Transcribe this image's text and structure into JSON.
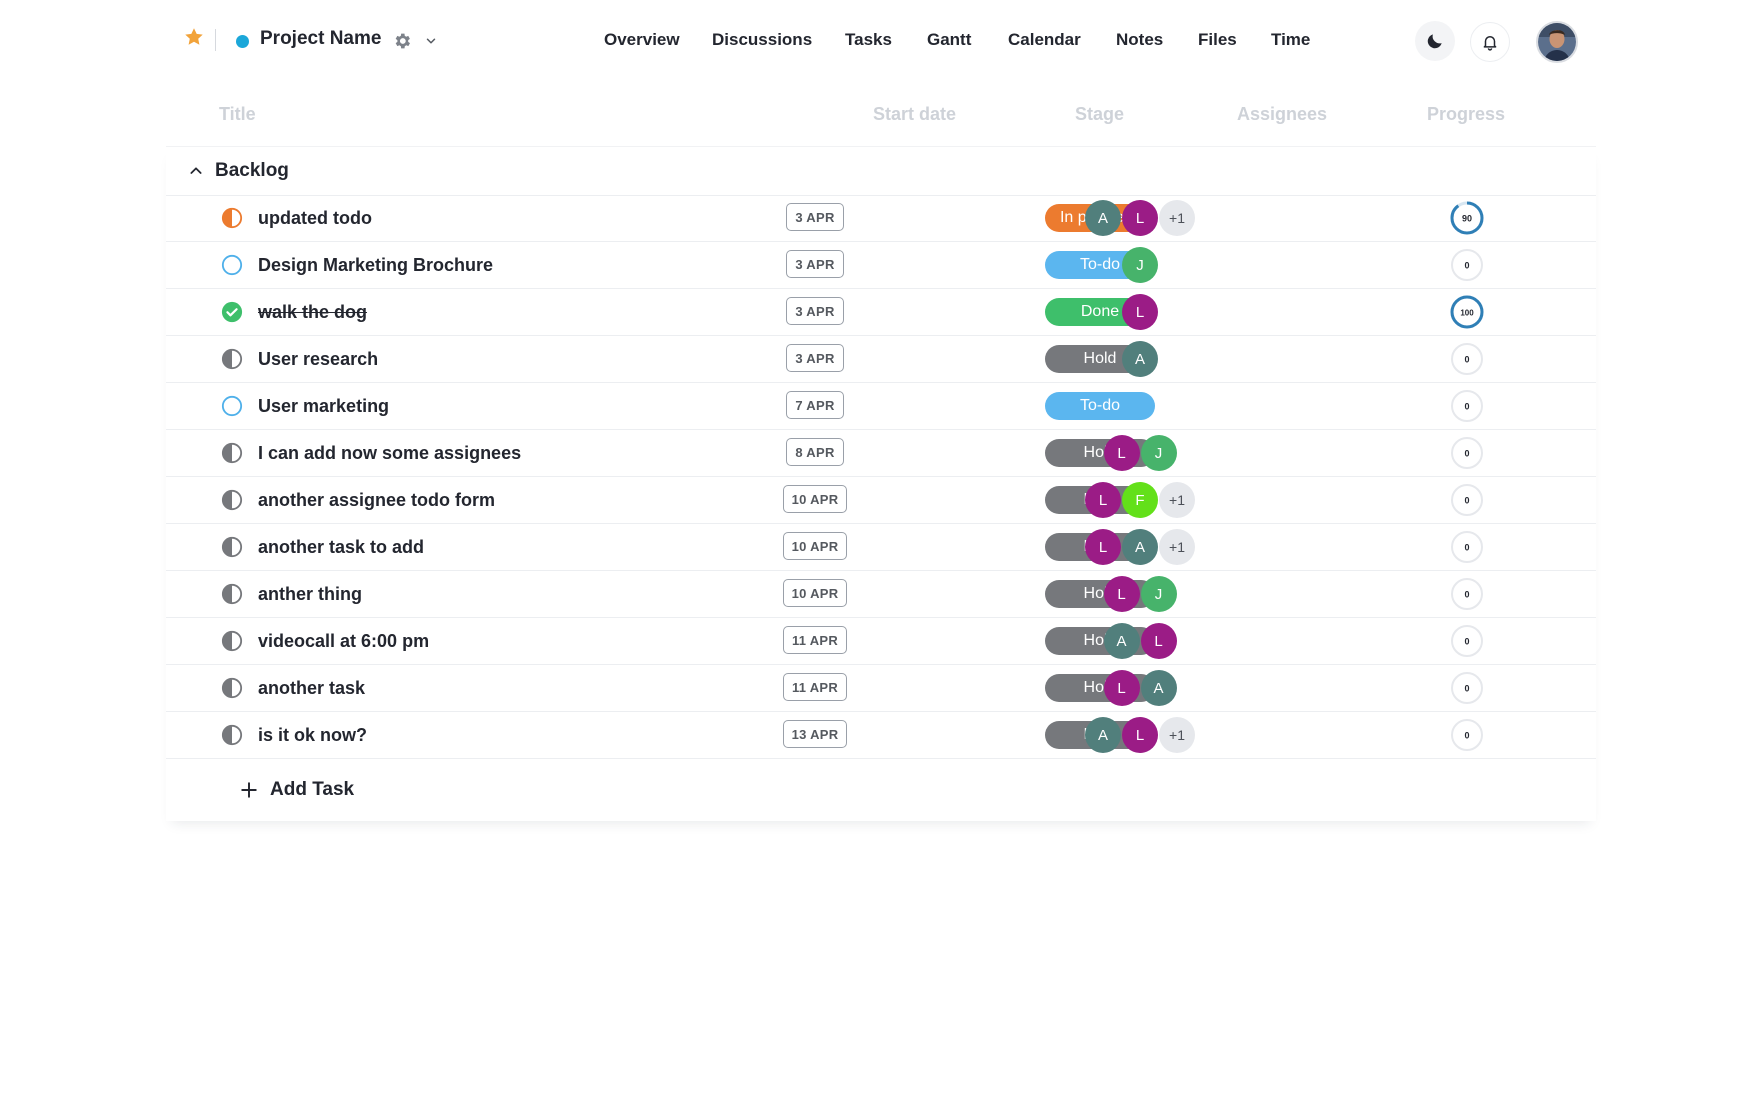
{
  "header": {
    "project_name": "Project Name",
    "project_color": "#1ba7d9",
    "star_color": "#f2a33a",
    "nav": [
      "Overview",
      "Discussions",
      "Tasks",
      "Gantt",
      "Calendar",
      "Notes",
      "Files",
      "Time"
    ]
  },
  "columns": [
    "Title",
    "Start date",
    "Stage",
    "Assignees",
    "Progress"
  ],
  "group": {
    "name": "Backlog"
  },
  "stage_colors": {
    "In progress": "#ec7b2f",
    "To-do": "#5bb6ef",
    "Done": "#3ebf6b",
    "Hold": "#76787c"
  },
  "avatar_colors": {
    "A": "#517f7c",
    "L": "#9b1c86",
    "J": "#47b36b",
    "F": "#63e01a"
  },
  "tasks": [
    {
      "title": "updated todo",
      "status": "in-progress",
      "date": "3 APR",
      "stage": "In progress",
      "assignees": [
        "A",
        "L"
      ],
      "more": "+1",
      "progress": 90
    },
    {
      "title": "Design Marketing Brochure",
      "status": "todo",
      "date": "3 APR",
      "stage": "To-do",
      "assignees": [
        "J"
      ],
      "more": "",
      "progress": 0
    },
    {
      "title": "walk the dog",
      "status": "done",
      "date": "3 APR",
      "stage": "Done",
      "assignees": [
        "L"
      ],
      "more": "",
      "progress": 100
    },
    {
      "title": "User research",
      "status": "hold",
      "date": "3 APR",
      "stage": "Hold",
      "assignees": [
        "A"
      ],
      "more": "",
      "progress": 0
    },
    {
      "title": "User marketing",
      "status": "todo",
      "date": "7 APR",
      "stage": "To-do",
      "assignees": [],
      "more": "",
      "progress": 0
    },
    {
      "title": "I can add now some assignees",
      "status": "hold",
      "date": "8 APR",
      "stage": "Hold",
      "assignees": [
        "L",
        "J"
      ],
      "more": "",
      "progress": 0
    },
    {
      "title": "another assignee todo form",
      "status": "hold",
      "date": "10 APR",
      "stage": "Hold",
      "assignees": [
        "L",
        "F"
      ],
      "more": "+1",
      "progress": 0
    },
    {
      "title": "another task to add",
      "status": "hold",
      "date": "10 APR",
      "stage": "Hold",
      "assignees": [
        "L",
        "A"
      ],
      "more": "+1",
      "progress": 0
    },
    {
      "title": "anther thing",
      "status": "hold",
      "date": "10 APR",
      "stage": "Hold",
      "assignees": [
        "L",
        "J"
      ],
      "more": "",
      "progress": 0
    },
    {
      "title": "videocall at 6:00 pm",
      "status": "hold",
      "date": "11 APR",
      "stage": "Hold",
      "assignees": [
        "A",
        "L"
      ],
      "more": "",
      "progress": 0
    },
    {
      "title": "another task",
      "status": "hold",
      "date": "11 APR",
      "stage": "Hold",
      "assignees": [
        "L",
        "A"
      ],
      "more": "",
      "progress": 0
    },
    {
      "title": "is it ok now?",
      "status": "hold",
      "date": "13 APR",
      "stage": "Hold",
      "assignees": [
        "A",
        "L"
      ],
      "more": "+1",
      "progress": 0
    }
  ],
  "add_task_label": "Add Task"
}
